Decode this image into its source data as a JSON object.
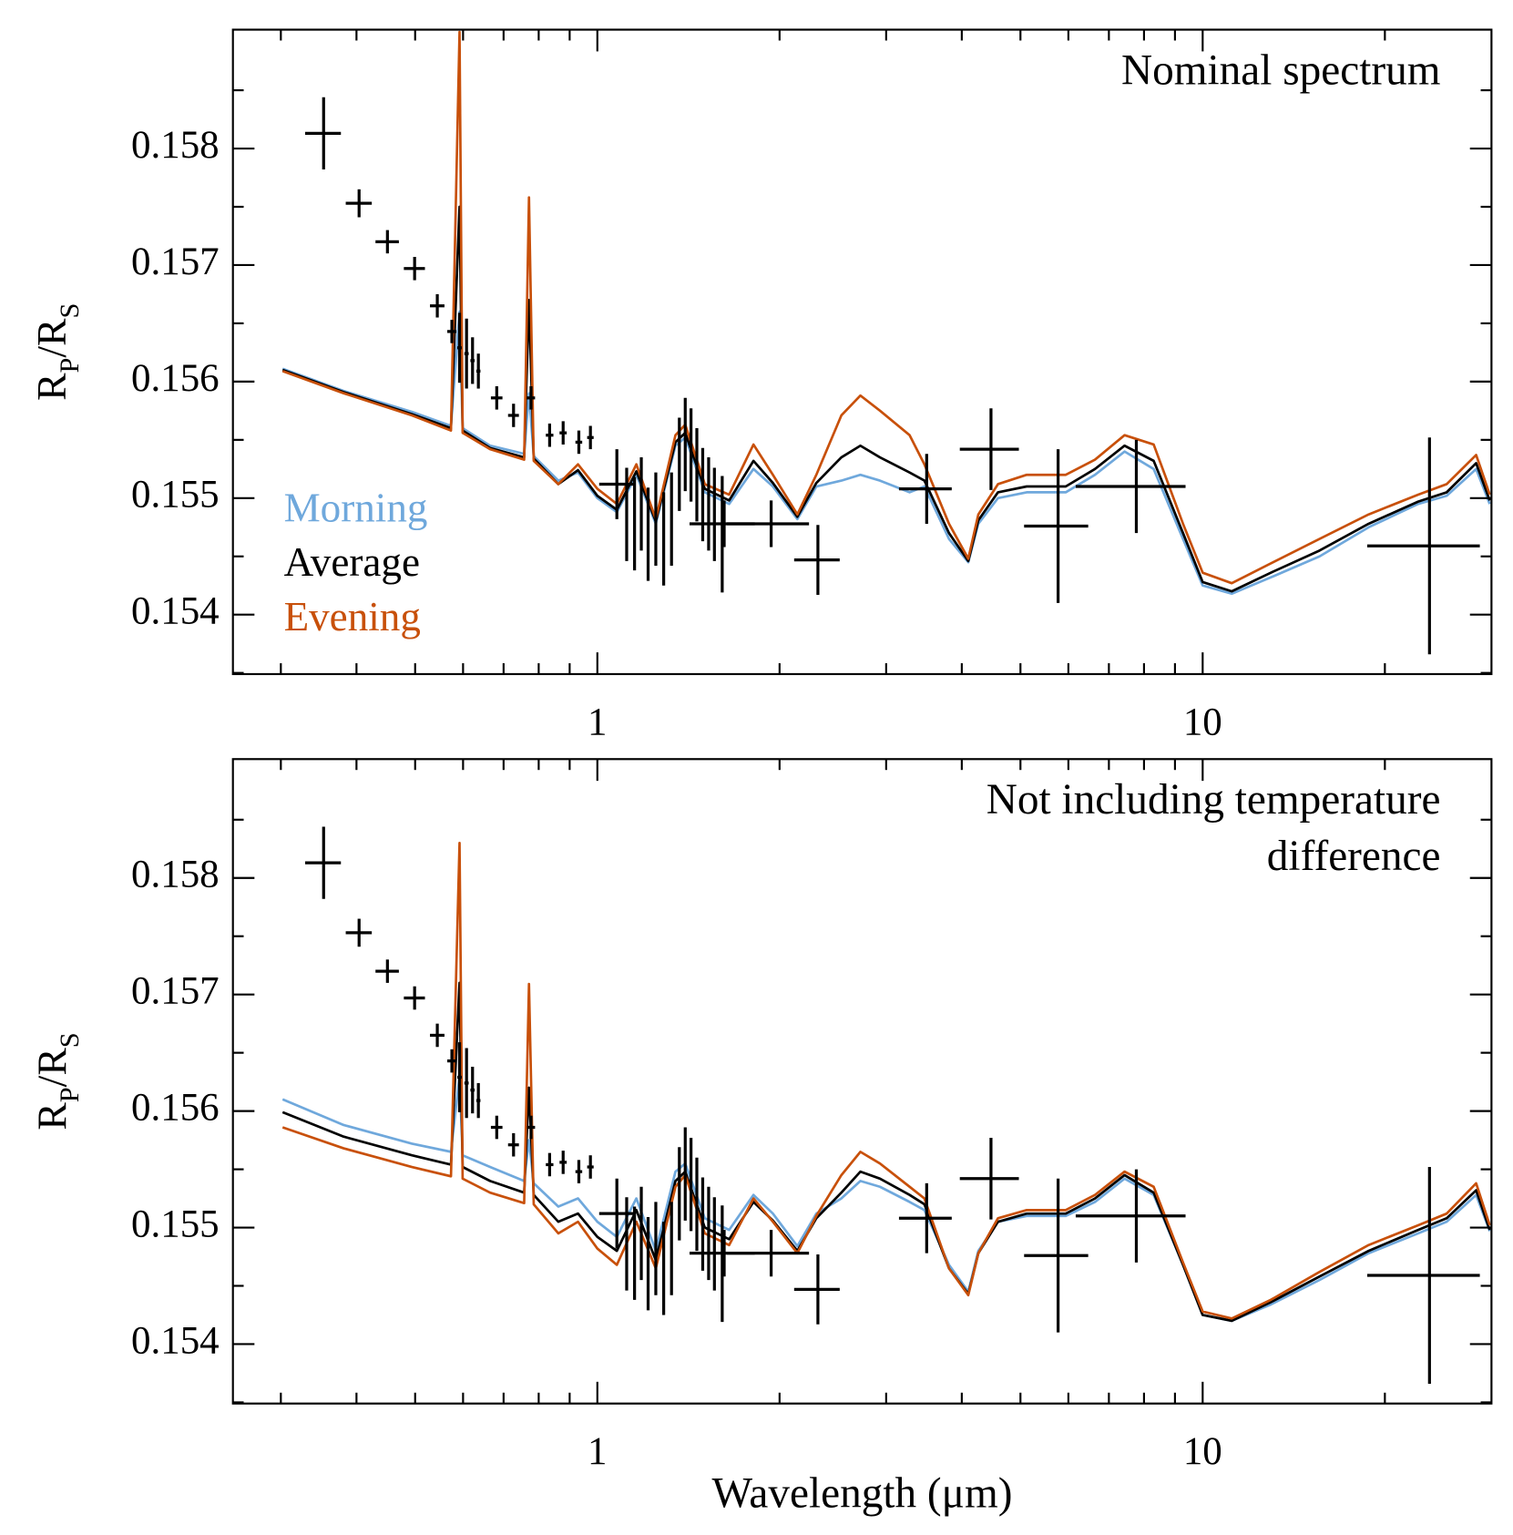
{
  "chart_data": [
    {
      "type": "line",
      "xscale": "log",
      "annotation": [
        "Nominal spectrum"
      ],
      "ylabel": [
        "R",
        "P",
        "/R",
        "S"
      ],
      "xlim": [
        0.25,
        30
      ],
      "ylim": [
        0.15349,
        0.15902
      ],
      "xticks": [
        1,
        10
      ],
      "xminorticks": [
        0.3,
        0.4,
        0.5,
        0.6,
        0.7,
        0.8,
        0.9,
        2,
        3,
        4,
        5,
        6,
        7,
        8,
        9,
        20
      ],
      "yticks": [
        0.154,
        0.155,
        0.156,
        0.157,
        0.158
      ],
      "yminorticks": [
        0.1535,
        0.1545,
        0.1555,
        0.1565,
        0.1575,
        0.1585
      ],
      "legend": "left",
      "x": [
        0.302,
        0.381,
        0.494,
        0.573,
        0.592,
        0.599,
        0.665,
        0.757,
        0.771,
        0.785,
        0.862,
        0.929,
        1.0,
        1.077,
        1.16,
        1.249,
        1.346,
        1.397,
        1.505,
        1.651,
        1.811,
        1.95,
        2.14,
        2.3,
        2.53,
        2.72,
        2.93,
        3.28,
        3.47,
        3.81,
        4.1,
        4.26,
        4.59,
        5.12,
        5.94,
        6.64,
        7.43,
        8.3,
        9.28,
        10.0,
        11.17,
        12.96,
        15.6,
        18.8,
        22.7,
        25.3,
        28.3,
        29.8
      ],
      "series": [
        {
          "name": "Morning",
          "color": "#6fa8dc",
          "values": [
            0.15611,
            0.15592,
            0.15574,
            0.15562,
            0.1566,
            0.1556,
            0.15545,
            0.15538,
            0.1559,
            0.15536,
            0.15515,
            0.15522,
            0.155,
            0.15488,
            0.1552,
            0.15478,
            0.15545,
            0.15552,
            0.15505,
            0.15495,
            0.15525,
            0.1551,
            0.15482,
            0.1551,
            0.15515,
            0.1552,
            0.15515,
            0.15505,
            0.1551,
            0.15465,
            0.15445,
            0.15478,
            0.155,
            0.15505,
            0.15505,
            0.1552,
            0.1554,
            0.15525,
            0.15465,
            0.15425,
            0.15418,
            0.15432,
            0.1545,
            0.15475,
            0.15495,
            0.15502,
            0.15525,
            0.15495
          ]
        },
        {
          "name": "Average",
          "color": "#000000",
          "values": [
            0.1561,
            0.15591,
            0.15572,
            0.1556,
            0.1575,
            0.15558,
            0.15543,
            0.15535,
            0.1567,
            0.15534,
            0.15512,
            0.15524,
            0.15502,
            0.1549,
            0.15523,
            0.1548,
            0.15548,
            0.15556,
            0.15508,
            0.15498,
            0.15532,
            0.15513,
            0.15484,
            0.15513,
            0.15535,
            0.15545,
            0.15535,
            0.15522,
            0.15515,
            0.1547,
            0.15446,
            0.15481,
            0.15505,
            0.1551,
            0.1551,
            0.15525,
            0.15545,
            0.15532,
            0.1547,
            0.15428,
            0.1542,
            0.15436,
            0.15455,
            0.15478,
            0.15497,
            0.15505,
            0.1553,
            0.15498
          ]
        },
        {
          "name": "Evening",
          "color": "#c8500a",
          "values": [
            0.15609,
            0.1559,
            0.15571,
            0.15558,
            0.159,
            0.15556,
            0.15542,
            0.15533,
            0.15758,
            0.15532,
            0.15512,
            0.15529,
            0.15508,
            0.15495,
            0.15529,
            0.15482,
            0.15554,
            0.15563,
            0.15512,
            0.15503,
            0.15546,
            0.1552,
            0.15486,
            0.1552,
            0.15571,
            0.15588,
            0.15575,
            0.15554,
            0.15529,
            0.15478,
            0.15448,
            0.15486,
            0.15512,
            0.1552,
            0.1552,
            0.15533,
            0.15554,
            0.15546,
            0.15478,
            0.15436,
            0.15427,
            0.15444,
            0.15465,
            0.15486,
            0.15503,
            0.15512,
            0.15537,
            0.15503
          ]
        }
      ],
      "data_points": {
        "x": [
          0.353,
          0.404,
          0.45,
          0.499,
          0.544,
          0.575,
          0.592,
          0.608,
          0.622,
          0.636,
          0.682,
          0.727,
          0.777,
          0.834,
          0.878,
          0.932,
          0.974,
          1.077,
          1.118,
          1.152,
          1.182,
          1.213,
          1.249,
          1.287,
          1.326,
          1.366,
          1.397,
          1.428,
          1.46,
          1.493,
          1.527,
          1.561,
          1.608,
          1.62,
          1.937,
          2.314,
          3.5,
          4.47,
          5.77,
          7.77,
          23.7
        ],
        "xerr": [
          0.024,
          0.02,
          0.02,
          0.02,
          0.015,
          0.01,
          0.005,
          0.005,
          0.005,
          0.005,
          0.015,
          0.015,
          0.012,
          0.012,
          0.012,
          0.012,
          0.012,
          0.07,
          0,
          0,
          0,
          0,
          0,
          0,
          0,
          0,
          0,
          0,
          0,
          0,
          0,
          0,
          0,
          0.2,
          0.3,
          0.2,
          0.35,
          0.5,
          0.7,
          1.6,
          5
        ],
        "values": [
          0.15813,
          0.15753,
          0.1572,
          0.15697,
          0.15665,
          0.15643,
          0.15629,
          0.15624,
          0.15618,
          0.15609,
          0.15586,
          0.15571,
          0.15586,
          0.15554,
          0.15556,
          0.15548,
          0.15552,
          0.15512,
          0.15486,
          0.15478,
          0.15495,
          0.15469,
          0.15482,
          0.15465,
          0.15482,
          0.15529,
          0.15546,
          0.15537,
          0.1552,
          0.15503,
          0.15495,
          0.15486,
          0.15469,
          0.15478,
          0.15478,
          0.15447,
          0.15508,
          0.15542,
          0.15476,
          0.1551,
          0.15459
        ],
        "yerr": [
          0.00031,
          0.00012,
          0.0001,
          0.0001,
          0.0001,
          0.0001,
          0.0003,
          0.0003,
          0.0002,
          0.00015,
          0.0001,
          0.0001,
          0.0001,
          0.0001,
          0.0001,
          0.0001,
          0.0001,
          0.0003,
          0.0004,
          0.0004,
          0.0004,
          0.0004,
          0.0004,
          0.0004,
          0.0004,
          0.0004,
          0.0004,
          0.0004,
          0.0004,
          0.0004,
          0.0004,
          0.0004,
          0.0005,
          0.0002,
          0.0002,
          0.0003,
          0.0003,
          0.00035,
          0.00066,
          0.0004,
          0.00093
        ]
      }
    },
    {
      "type": "line",
      "xscale": "log",
      "annotation": [
        "Not including temperature",
        "difference"
      ],
      "ylabel": [
        "R",
        "P",
        "/R",
        "S"
      ],
      "xlabel": "Wavelength (μm)",
      "xlim": [
        0.25,
        30
      ],
      "ylim": [
        0.15349,
        0.15902
      ],
      "xticks": [
        1,
        10
      ],
      "xminorticks": [
        0.3,
        0.4,
        0.5,
        0.6,
        0.7,
        0.8,
        0.9,
        2,
        3,
        4,
        5,
        6,
        7,
        8,
        9,
        20
      ],
      "yticks": [
        0.154,
        0.155,
        0.156,
        0.157,
        0.158
      ],
      "yminorticks": [
        0.1535,
        0.1545,
        0.1555,
        0.1565,
        0.1575,
        0.1585
      ],
      "x": [
        0.302,
        0.381,
        0.494,
        0.573,
        0.592,
        0.599,
        0.665,
        0.757,
        0.771,
        0.785,
        0.862,
        0.929,
        1.0,
        1.077,
        1.16,
        1.249,
        1.346,
        1.397,
        1.505,
        1.651,
        1.811,
        1.95,
        2.14,
        2.3,
        2.53,
        2.72,
        2.93,
        3.28,
        3.47,
        3.81,
        4.1,
        4.26,
        4.59,
        5.12,
        5.94,
        6.64,
        7.43,
        8.3,
        9.28,
        10.0,
        11.17,
        12.96,
        15.6,
        18.8,
        22.7,
        25.3,
        28.3,
        29.8
      ],
      "series": [
        {
          "color": "#6fa8dc",
          "values": [
            0.1561,
            0.15588,
            0.15572,
            0.15565,
            0.1563,
            0.15562,
            0.15552,
            0.1554,
            0.15575,
            0.15538,
            0.15518,
            0.15525,
            0.15505,
            0.15492,
            0.15525,
            0.1548,
            0.15548,
            0.15555,
            0.15508,
            0.15498,
            0.15528,
            0.15512,
            0.15484,
            0.15512,
            0.15525,
            0.1554,
            0.15535,
            0.15522,
            0.15515,
            0.15468,
            0.15445,
            0.1548,
            0.15505,
            0.1551,
            0.1551,
            0.15522,
            0.15542,
            0.15528,
            0.15468,
            0.15425,
            0.1542,
            0.15434,
            0.15455,
            0.15478,
            0.15495,
            0.15505,
            0.15528,
            0.15497
          ]
        },
        {
          "color": "#000000",
          "values": [
            0.15599,
            0.15578,
            0.15562,
            0.15554,
            0.1571,
            0.15552,
            0.1554,
            0.1553,
            0.1562,
            0.15528,
            0.15505,
            0.15512,
            0.15492,
            0.1548,
            0.15515,
            0.15472,
            0.1554,
            0.15548,
            0.155,
            0.1549,
            0.15522,
            0.15506,
            0.1548,
            0.15508,
            0.1553,
            0.15548,
            0.15542,
            0.15528,
            0.1552,
            0.15465,
            0.15443,
            0.15478,
            0.15505,
            0.15512,
            0.15512,
            0.15525,
            0.15545,
            0.1553,
            0.15468,
            0.15425,
            0.1542,
            0.15436,
            0.15458,
            0.1548,
            0.15498,
            0.15508,
            0.15532,
            0.15498
          ]
        },
        {
          "color": "#c8500a",
          "values": [
            0.15586,
            0.15568,
            0.15552,
            0.15544,
            0.1583,
            0.15542,
            0.1553,
            0.15521,
            0.15709,
            0.1552,
            0.15495,
            0.15505,
            0.15482,
            0.15468,
            0.15505,
            0.15465,
            0.15535,
            0.15545,
            0.15495,
            0.15485,
            0.15525,
            0.15505,
            0.15478,
            0.1551,
            0.15545,
            0.15565,
            0.15555,
            0.15535,
            0.15525,
            0.15465,
            0.15442,
            0.15478,
            0.15508,
            0.15515,
            0.15515,
            0.15528,
            0.15548,
            0.15535,
            0.1547,
            0.15428,
            0.15422,
            0.15438,
            0.15462,
            0.15485,
            0.15502,
            0.15512,
            0.15538,
            0.15502
          ]
        }
      ],
      "data_points": {
        "x": [
          0.353,
          0.404,
          0.45,
          0.499,
          0.544,
          0.575,
          0.592,
          0.608,
          0.622,
          0.636,
          0.682,
          0.727,
          0.777,
          0.834,
          0.878,
          0.932,
          0.974,
          1.077,
          1.118,
          1.152,
          1.182,
          1.213,
          1.249,
          1.287,
          1.326,
          1.366,
          1.397,
          1.428,
          1.46,
          1.493,
          1.527,
          1.561,
          1.608,
          1.62,
          1.937,
          2.314,
          3.5,
          4.47,
          5.77,
          7.77,
          23.7
        ],
        "xerr": [
          0.024,
          0.02,
          0.02,
          0.02,
          0.015,
          0.01,
          0.005,
          0.005,
          0.005,
          0.005,
          0.015,
          0.015,
          0.012,
          0.012,
          0.012,
          0.012,
          0.012,
          0.07,
          0,
          0,
          0,
          0,
          0,
          0,
          0,
          0,
          0,
          0,
          0,
          0,
          0,
          0,
          0,
          0.2,
          0.3,
          0.2,
          0.35,
          0.5,
          0.7,
          1.6,
          5
        ],
        "values": [
          0.15813,
          0.15753,
          0.1572,
          0.15697,
          0.15665,
          0.15643,
          0.15629,
          0.15624,
          0.15618,
          0.15609,
          0.15586,
          0.15571,
          0.15586,
          0.15554,
          0.15556,
          0.15548,
          0.15552,
          0.15512,
          0.15486,
          0.15478,
          0.15495,
          0.15469,
          0.15482,
          0.15465,
          0.15482,
          0.15529,
          0.15546,
          0.15537,
          0.1552,
          0.15503,
          0.15495,
          0.15486,
          0.15469,
          0.15478,
          0.15478,
          0.15447,
          0.15508,
          0.15542,
          0.15476,
          0.1551,
          0.15459
        ],
        "yerr": [
          0.00031,
          0.00012,
          0.0001,
          0.0001,
          0.0001,
          0.0001,
          0.0003,
          0.0003,
          0.0002,
          0.00015,
          0.0001,
          0.0001,
          0.0001,
          0.0001,
          0.0001,
          0.0001,
          0.0001,
          0.0003,
          0.0004,
          0.0004,
          0.0004,
          0.0004,
          0.0004,
          0.0004,
          0.0004,
          0.0004,
          0.0004,
          0.0004,
          0.0004,
          0.0004,
          0.0004,
          0.0004,
          0.0005,
          0.0002,
          0.0002,
          0.0003,
          0.0003,
          0.00035,
          0.00066,
          0.0004,
          0.00093
        ]
      }
    }
  ]
}
